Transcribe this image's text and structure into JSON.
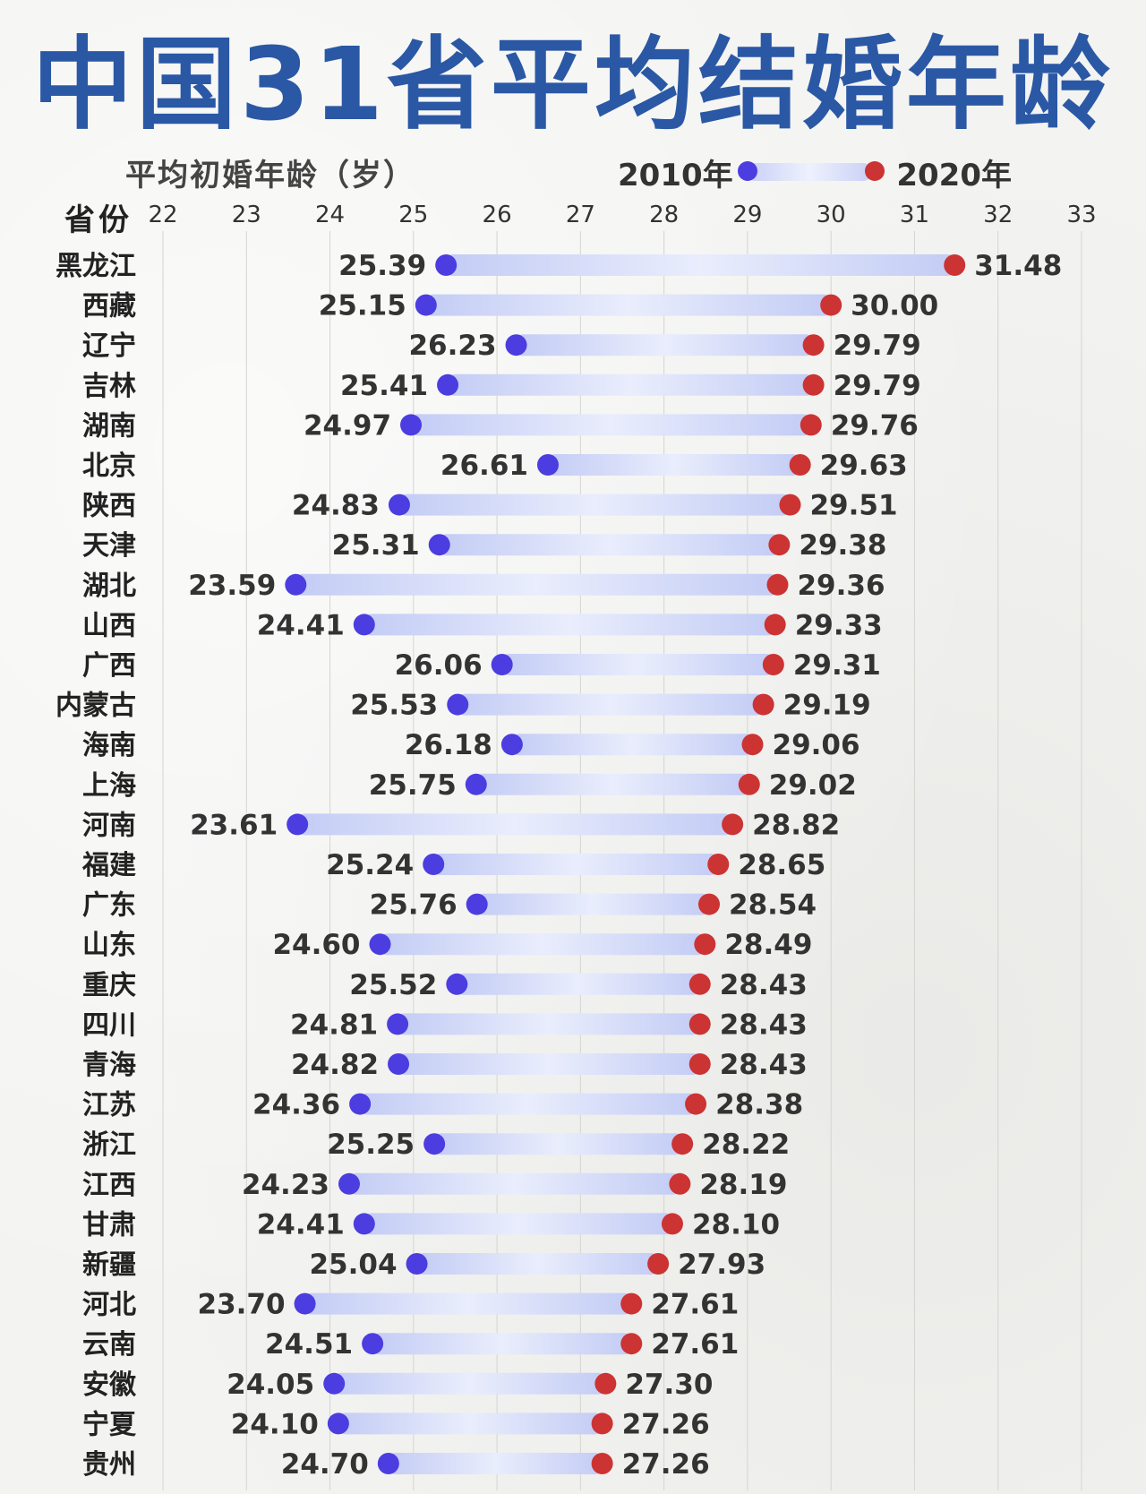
{
  "title": "中国31省平均结婚年龄",
  "subtitle": "平均初婚年龄（岁）",
  "legend": {
    "a": "2010年",
    "b": "2020年"
  },
  "row_header": "省份",
  "colors": {
    "dot2010": "#4b3de0",
    "dot2020": "#cc3333",
    "title": "#2a58a5"
  },
  "chart_data": {
    "type": "dumbbell",
    "x_ticks": [
      22,
      23,
      24,
      25,
      26,
      27,
      28,
      29,
      30,
      31,
      32,
      33
    ],
    "xlim": [
      22,
      33
    ],
    "grid": true,
    "series": [
      {
        "name": "2010年",
        "key": "y2010"
      },
      {
        "name": "2020年",
        "key": "y2020"
      }
    ],
    "rows": [
      {
        "province": "黑龙江",
        "y2010": "25.39",
        "y2020": "31.48"
      },
      {
        "province": "西藏",
        "y2010": "25.15",
        "y2020": "30.00"
      },
      {
        "province": "辽宁",
        "y2010": "26.23",
        "y2020": "29.79"
      },
      {
        "province": "吉林",
        "y2010": "25.41",
        "y2020": "29.79"
      },
      {
        "province": "湖南",
        "y2010": "24.97",
        "y2020": "29.76"
      },
      {
        "province": "北京",
        "y2010": "26.61",
        "y2020": "29.63"
      },
      {
        "province": "陕西",
        "y2010": "24.83",
        "y2020": "29.51"
      },
      {
        "province": "天津",
        "y2010": "25.31",
        "y2020": "29.38"
      },
      {
        "province": "湖北",
        "y2010": "23.59",
        "y2020": "29.36"
      },
      {
        "province": "山西",
        "y2010": "24.41",
        "y2020": "29.33"
      },
      {
        "province": "广西",
        "y2010": "26.06",
        "y2020": "29.31"
      },
      {
        "province": "内蒙古",
        "y2010": "25.53",
        "y2020": "29.19"
      },
      {
        "province": "海南",
        "y2010": "26.18",
        "y2020": "29.06"
      },
      {
        "province": "上海",
        "y2010": "25.75",
        "y2020": "29.02"
      },
      {
        "province": "河南",
        "y2010": "23.61",
        "y2020": "28.82"
      },
      {
        "province": "福建",
        "y2010": "25.24",
        "y2020": "28.65"
      },
      {
        "province": "广东",
        "y2010": "25.76",
        "y2020": "28.54"
      },
      {
        "province": "山东",
        "y2010": "24.60",
        "y2020": "28.49"
      },
      {
        "province": "重庆",
        "y2010": "25.52",
        "y2020": "28.43"
      },
      {
        "province": "四川",
        "y2010": "24.81",
        "y2020": "28.43"
      },
      {
        "province": "青海",
        "y2010": "24.82",
        "y2020": "28.43"
      },
      {
        "province": "江苏",
        "y2010": "24.36",
        "y2020": "28.38"
      },
      {
        "province": "浙江",
        "y2010": "25.25",
        "y2020": "28.22"
      },
      {
        "province": "江西",
        "y2010": "24.23",
        "y2020": "28.19"
      },
      {
        "province": "甘肃",
        "y2010": "24.41",
        "y2020": "28.10"
      },
      {
        "province": "新疆",
        "y2010": "25.04",
        "y2020": "27.93"
      },
      {
        "province": "河北",
        "y2010": "23.70",
        "y2020": "27.61"
      },
      {
        "province": "云南",
        "y2010": "24.51",
        "y2020": "27.61"
      },
      {
        "province": "安徽",
        "y2010": "24.05",
        "y2020": "27.30"
      },
      {
        "province": "宁夏",
        "y2010": "24.10",
        "y2020": "27.26"
      },
      {
        "province": "贵州",
        "y2010": "24.70",
        "y2020": "27.26"
      }
    ]
  }
}
